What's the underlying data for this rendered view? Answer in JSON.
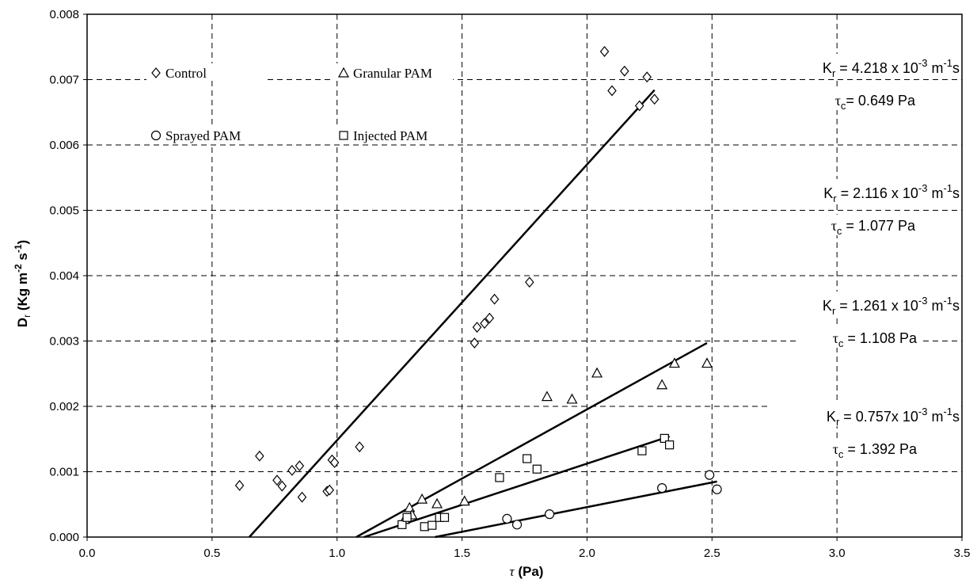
{
  "chart_data": {
    "type": "scatter",
    "title": "",
    "xlabel": "τ (Pa)",
    "ylabel": "Dr (Kg m-2 s-1)",
    "xlim": [
      0,
      3.5
    ],
    "ylim": [
      0,
      0.008
    ],
    "x_ticks": [
      "0.0",
      "0.5",
      "1.0",
      "1.5",
      "2.0",
      "2.5",
      "3.0",
      "3.5"
    ],
    "y_ticks": [
      "0.000",
      "0.001",
      "0.002",
      "0.003",
      "0.004",
      "0.005",
      "0.006",
      "0.007",
      "0.008"
    ],
    "grid": true,
    "legend_position": "top-left inside plot",
    "series": [
      {
        "name": "Control",
        "marker": "diamond",
        "points": [
          {
            "x": 0.61,
            "y": 0.00079
          },
          {
            "x": 0.69,
            "y": 0.00124
          },
          {
            "x": 0.76,
            "y": 0.00087
          },
          {
            "x": 0.78,
            "y": 0.00078
          },
          {
            "x": 0.82,
            "y": 0.00102
          },
          {
            "x": 0.85,
            "y": 0.00109
          },
          {
            "x": 0.86,
            "y": 0.00061
          },
          {
            "x": 0.96,
            "y": 0.0007
          },
          {
            "x": 0.97,
            "y": 0.00072
          },
          {
            "x": 0.98,
            "y": 0.00118
          },
          {
            "x": 0.99,
            "y": 0.00114
          },
          {
            "x": 1.09,
            "y": 0.00138
          },
          {
            "x": 1.55,
            "y": 0.00297
          },
          {
            "x": 1.56,
            "y": 0.00321
          },
          {
            "x": 1.59,
            "y": 0.00327
          },
          {
            "x": 1.61,
            "y": 0.00335
          },
          {
            "x": 1.63,
            "y": 0.00364
          },
          {
            "x": 1.77,
            "y": 0.0039
          },
          {
            "x": 2.07,
            "y": 0.00743
          },
          {
            "x": 2.1,
            "y": 0.00683
          },
          {
            "x": 2.15,
            "y": 0.00713
          },
          {
            "x": 2.21,
            "y": 0.0066
          },
          {
            "x": 2.24,
            "y": 0.00704
          },
          {
            "x": 2.27,
            "y": 0.0067
          }
        ],
        "fit": {
          "x": [
            0.649,
            2.27
          ],
          "y": [
            0.0,
            0.00684
          ]
        }
      },
      {
        "name": "Granular PAM",
        "marker": "triangle",
        "points": [
          {
            "x": 1.27,
            "y": 0.00027
          },
          {
            "x": 1.29,
            "y": 0.00045
          },
          {
            "x": 1.3,
            "y": 0.00034
          },
          {
            "x": 1.34,
            "y": 0.00058
          },
          {
            "x": 1.4,
            "y": 0.00051
          },
          {
            "x": 1.51,
            "y": 0.00055
          },
          {
            "x": 1.84,
            "y": 0.00215
          },
          {
            "x": 1.94,
            "y": 0.00211
          },
          {
            "x": 2.04,
            "y": 0.00251
          },
          {
            "x": 2.3,
            "y": 0.00233
          },
          {
            "x": 2.35,
            "y": 0.00266
          },
          {
            "x": 2.48,
            "y": 0.00266
          }
        ],
        "fit": {
          "x": [
            1.077,
            2.48
          ],
          "y": [
            0.0,
            0.00297
          ]
        }
      },
      {
        "name": "Sprayed PAM",
        "marker": "circle",
        "points": [
          {
            "x": 1.68,
            "y": 0.00028
          },
          {
            "x": 1.72,
            "y": 0.00019
          },
          {
            "x": 1.85,
            "y": 0.00035
          },
          {
            "x": 2.3,
            "y": 0.00075
          },
          {
            "x": 2.49,
            "y": 0.00095
          },
          {
            "x": 2.52,
            "y": 0.00073
          }
        ],
        "fit": {
          "x": [
            1.392,
            2.52
          ],
          "y": [
            0.0,
            0.00085
          ]
        }
      },
      {
        "name": "Injected PAM",
        "marker": "square",
        "points": [
          {
            "x": 1.26,
            "y": 0.00019
          },
          {
            "x": 1.28,
            "y": 0.0003
          },
          {
            "x": 1.35,
            "y": 0.00016
          },
          {
            "x": 1.38,
            "y": 0.00018
          },
          {
            "x": 1.41,
            "y": 0.0003
          },
          {
            "x": 1.43,
            "y": 0.0003
          },
          {
            "x": 1.65,
            "y": 0.00091
          },
          {
            "x": 1.76,
            "y": 0.0012
          },
          {
            "x": 1.8,
            "y": 0.00104
          },
          {
            "x": 2.22,
            "y": 0.00132
          },
          {
            "x": 2.31,
            "y": 0.00151
          },
          {
            "x": 2.33,
            "y": 0.00141
          }
        ],
        "fit": {
          "x": [
            1.108,
            2.33
          ],
          "y": [
            0.0,
            0.00154
          ]
        }
      }
    ],
    "annotations": [
      {
        "kr_prefix": "K",
        "kr_sub": "r",
        "kr_value": " = 4.218 x 10",
        "kr_exp": "-3",
        "kr_units": " m",
        "kr_units_exp": "-1",
        "kr_tail": "s",
        "tc_prefix": "τ",
        "tc_sub": "c",
        "tc_value": "= 0.649 Pa"
      },
      {
        "kr_prefix": "K",
        "kr_sub": "r",
        "kr_value": " = 2.116 x 10",
        "kr_exp": "-3",
        "kr_units": " m",
        "kr_units_exp": "-1",
        "kr_tail": "s",
        "tc_prefix": "τ",
        "tc_sub": "c",
        "tc_value": " = 1.077 Pa"
      },
      {
        "kr_prefix": "K",
        "kr_sub": "r",
        "kr_value": " = 1.261 x 10",
        "kr_exp": "-3",
        "kr_units": " m",
        "kr_units_exp": "-1",
        "kr_tail": "s",
        "tc_prefix": "τ",
        "tc_sub": "c",
        "tc_value": " = 1.108 Pa"
      },
      {
        "kr_prefix": "K",
        "kr_sub": "r",
        "kr_value": " = 0.757x 10",
        "kr_exp": "-3",
        "kr_units": " m",
        "kr_units_exp": "-1",
        "kr_tail": "s",
        "tc_prefix": "τ",
        "tc_sub": "c",
        "tc_value": " = 1.392 Pa"
      }
    ]
  }
}
